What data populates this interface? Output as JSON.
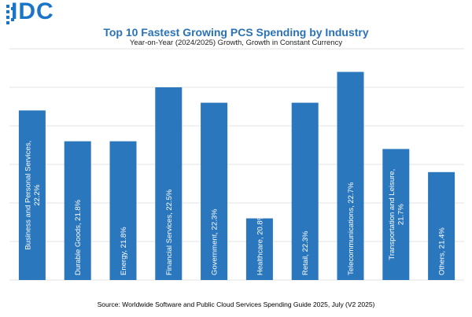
{
  "logo": {
    "text": "IDC",
    "color": "#1a75c9"
  },
  "title": "Top 10 Fastest Growing PCS Spending by Industry",
  "subtitle": "Year-on-Year (2024/2025) Growth, Growth in Constant Currency",
  "source": "Source: Worldwide Software and Public Cloud Services Spending Guide 2025, July (V2 2025)",
  "colors": {
    "bar": "#2b77bd",
    "grid": "#e3e3e3",
    "bar_label": "#ffffff"
  },
  "chart_data": {
    "type": "bar",
    "title": "Top 10 Fastest Growing PCS Spending by Industry",
    "subtitle": "Year-on-Year (2024/2025) Growth, Growth in Constant Currency",
    "categories": [
      "Business and Personal Services",
      "Durable Goods",
      "Energy",
      "Financial Services",
      "Government",
      "Healthcare",
      "Retail",
      "Telecommunications",
      "Transportation and Leisure",
      "Others"
    ],
    "values": [
      22.2,
      21.8,
      21.8,
      22.5,
      22.3,
      20.8,
      22.3,
      22.7,
      21.7,
      21.4
    ],
    "bar_labels": [
      "Business and Personal Services, 22.2%",
      "Durable Goods, 21.8%",
      "Energy, 21.8%",
      "Financial Services, 22.5%",
      "Government, 22.3%",
      "Healthcare, 20.8%",
      "Retail, 22.3%",
      "Telecommunications, 22.7%",
      "Transportation and Leisure, 21.7%",
      "Others, 21.4%"
    ],
    "ylim": [
      20.0,
      23.0
    ],
    "grid": true,
    "gridlines": [
      20.0,
      20.5,
      21.0,
      21.5,
      22.0,
      22.5,
      23.0
    ],
    "legend": "none"
  }
}
